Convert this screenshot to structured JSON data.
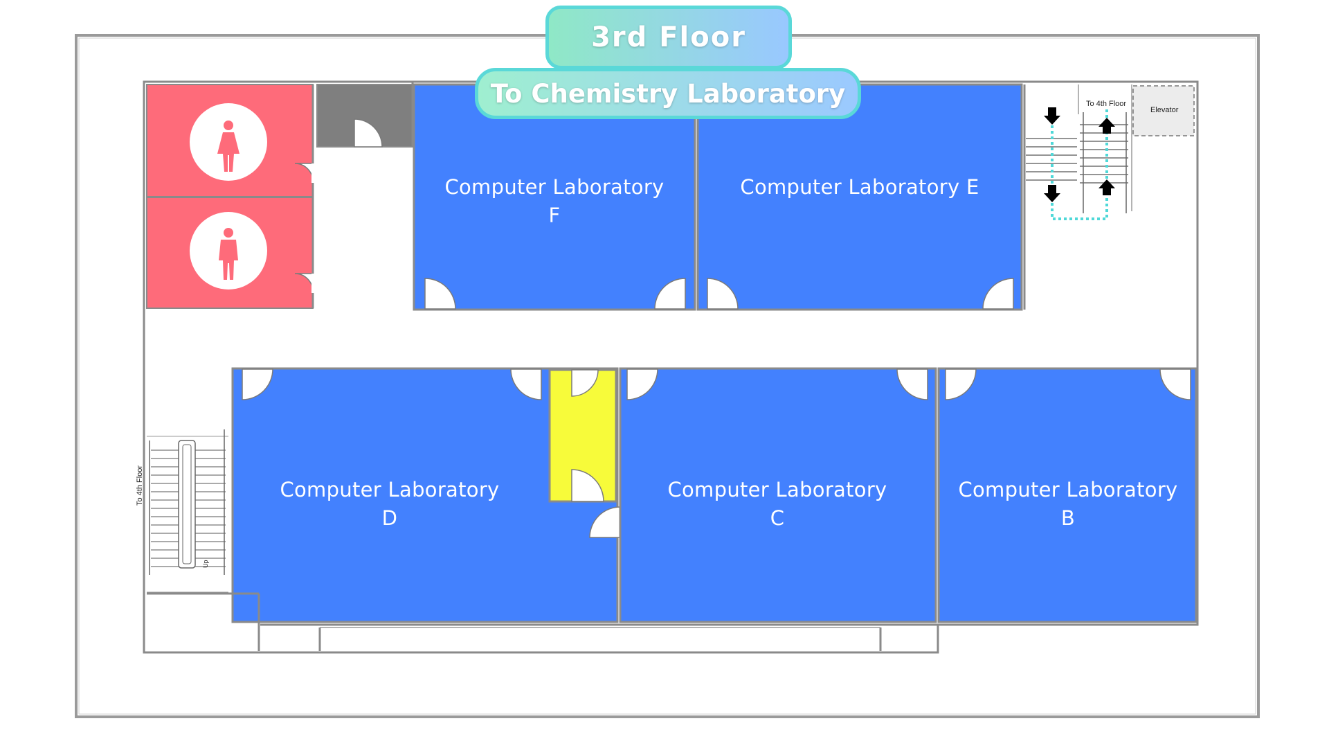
{
  "header": {
    "floor_title": "3rd Floor",
    "destination": "To Chemistry Laboratory"
  },
  "rooms": {
    "lab_f": {
      "line1": "Computer Laboratory",
      "line2": "F"
    },
    "lab_e": {
      "line1": "Computer Laboratory E",
      "line2": ""
    },
    "lab_d": {
      "line1": "Computer Laboratory",
      "line2": "D"
    },
    "lab_c": {
      "line1": "Computer Laboratory",
      "line2": "C"
    },
    "lab_b": {
      "line1": "Computer Laboratory",
      "line2": "B"
    }
  },
  "stairs": {
    "top_right_label": "To 4th Floor",
    "left_label": "To 4th Floor",
    "up_label": "Up",
    "elevator_label": "Elevator"
  },
  "restrooms": {
    "female_icon": "female-restroom-icon",
    "male_icon": "male-restroom-icon"
  },
  "colors": {
    "lab": "#4381fe",
    "restroom": "#fe6b7a",
    "storage": "#7f7f7f",
    "utility": "#f7fb3a",
    "route": "#4fd8d8"
  }
}
